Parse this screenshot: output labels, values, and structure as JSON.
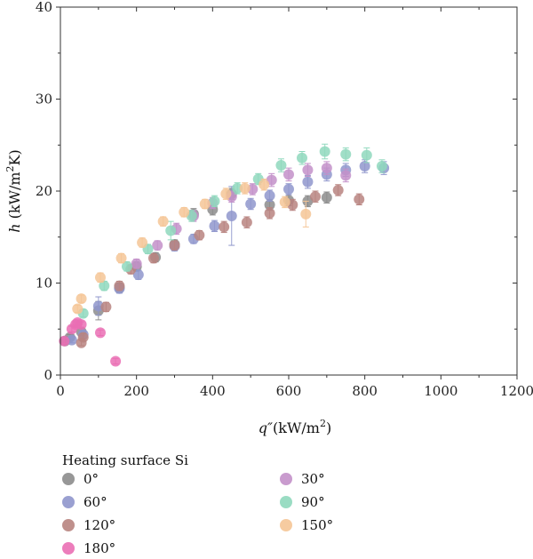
{
  "chart_data": {
    "type": "scatter",
    "title": "",
    "xlabel_prefix": "q″",
    "xlabel_unit": "(kW/m",
    "xlabel_sup": "2",
    "xlabel_close": ")",
    "ylabel_italic": "h",
    "ylabel_unit": " (kW/m",
    "ylabel_sup": "2",
    "ylabel_close": "K)",
    "xlim": [
      0,
      1200
    ],
    "ylim": [
      0,
      40
    ],
    "xticks": [
      0,
      200,
      400,
      600,
      800,
      1000,
      1200
    ],
    "yticks": [
      0,
      10,
      20,
      30,
      40
    ],
    "grid": false,
    "legend": {
      "title": "Heating surface Si",
      "placement": "bottom"
    },
    "series": [
      {
        "name": "0°",
        "color": "#8c8c8c",
        "points": [
          {
            "x": 12,
            "y": 3.7,
            "err": 0.3
          },
          {
            "x": 25,
            "y": 4.1,
            "err": 0.3
          },
          {
            "x": 55,
            "y": 4.7,
            "err": 0.4
          },
          {
            "x": 100,
            "y": 7.0,
            "err": 1.0
          },
          {
            "x": 155,
            "y": 9.5,
            "err": 0.5
          },
          {
            "x": 200,
            "y": 11.8,
            "err": 0.5
          },
          {
            "x": 250,
            "y": 12.8,
            "err": 0.5
          },
          {
            "x": 300,
            "y": 14.2,
            "err": 0.5
          },
          {
            "x": 350,
            "y": 17.5,
            "err": 0.6
          },
          {
            "x": 400,
            "y": 18.0,
            "err": 0.6
          },
          {
            "x": 450,
            "y": 19.7,
            "err": 0.6
          },
          {
            "x": 550,
            "y": 18.5,
            "err": 0.6
          },
          {
            "x": 600,
            "y": 19.0,
            "err": 0.6
          },
          {
            "x": 650,
            "y": 18.9,
            "err": 0.6
          },
          {
            "x": 700,
            "y": 19.3,
            "err": 0.6
          }
        ]
      },
      {
        "name": "60°",
        "color": "#8f96cc",
        "points": [
          {
            "x": 30,
            "y": 3.8,
            "err": 0.3
          },
          {
            "x": 60,
            "y": 4.4,
            "err": 0.4
          },
          {
            "x": 100,
            "y": 7.5,
            "err": 1.0
          },
          {
            "x": 155,
            "y": 9.4,
            "err": 0.5
          },
          {
            "x": 205,
            "y": 10.9,
            "err": 0.5
          },
          {
            "x": 300,
            "y": 14.0,
            "err": 0.5
          },
          {
            "x": 350,
            "y": 14.8,
            "err": 0.5
          },
          {
            "x": 405,
            "y": 16.2,
            "err": 0.6
          },
          {
            "x": 450,
            "y": 17.3,
            "err": 3.2
          },
          {
            "x": 500,
            "y": 18.6,
            "err": 0.6
          },
          {
            "x": 550,
            "y": 19.5,
            "err": 0.6
          },
          {
            "x": 600,
            "y": 20.2,
            "err": 0.6
          },
          {
            "x": 650,
            "y": 21.0,
            "err": 0.7
          },
          {
            "x": 700,
            "y": 21.8,
            "err": 0.7
          },
          {
            "x": 750,
            "y": 22.3,
            "err": 0.7
          },
          {
            "x": 800,
            "y": 22.7,
            "err": 0.7
          },
          {
            "x": 850,
            "y": 22.5,
            "err": 0.7
          }
        ]
      },
      {
        "name": "120°",
        "color": "#b88480",
        "points": [
          {
            "x": 55,
            "y": 3.5,
            "err": 0.3
          },
          {
            "x": 60,
            "y": 4.1,
            "err": 0.4
          },
          {
            "x": 120,
            "y": 7.4,
            "err": 0.5
          },
          {
            "x": 155,
            "y": 9.7,
            "err": 0.5
          },
          {
            "x": 185,
            "y": 11.5,
            "err": 0.5
          },
          {
            "x": 245,
            "y": 12.7,
            "err": 0.5
          },
          {
            "x": 300,
            "y": 14.1,
            "err": 0.5
          },
          {
            "x": 365,
            "y": 15.2,
            "err": 0.5
          },
          {
            "x": 430,
            "y": 16.1,
            "err": 0.6
          },
          {
            "x": 490,
            "y": 16.6,
            "err": 0.6
          },
          {
            "x": 550,
            "y": 17.6,
            "err": 0.6
          },
          {
            "x": 610,
            "y": 18.5,
            "err": 0.6
          },
          {
            "x": 670,
            "y": 19.4,
            "err": 0.6
          },
          {
            "x": 730,
            "y": 20.1,
            "err": 0.6
          },
          {
            "x": 785,
            "y": 19.1,
            "err": 0.6
          }
        ]
      },
      {
        "name": "180°",
        "color": "#ea6fb4",
        "points": [
          {
            "x": 10,
            "y": 3.7,
            "err": 0.3
          },
          {
            "x": 30,
            "y": 5.0,
            "err": 0.3
          },
          {
            "x": 40,
            "y": 5.5,
            "err": 0.3
          },
          {
            "x": 45,
            "y": 5.7,
            "err": 0.3
          },
          {
            "x": 55,
            "y": 5.5,
            "err": 0.3
          },
          {
            "x": 105,
            "y": 4.6,
            "err": 0.3
          },
          {
            "x": 145,
            "y": 1.5,
            "err": 0.3
          }
        ]
      },
      {
        "name": "30°",
        "color": "#c390c9",
        "points": [
          {
            "x": 200,
            "y": 12.1,
            "err": 0.5
          },
          {
            "x": 255,
            "y": 14.1,
            "err": 0.5
          },
          {
            "x": 305,
            "y": 15.9,
            "err": 0.6
          },
          {
            "x": 350,
            "y": 17.3,
            "err": 0.6
          },
          {
            "x": 400,
            "y": 18.7,
            "err": 0.6
          },
          {
            "x": 450,
            "y": 19.4,
            "err": 0.6
          },
          {
            "x": 505,
            "y": 20.2,
            "err": 0.6
          },
          {
            "x": 555,
            "y": 21.2,
            "err": 0.7
          },
          {
            "x": 600,
            "y": 21.8,
            "err": 0.7
          },
          {
            "x": 650,
            "y": 22.3,
            "err": 0.7
          },
          {
            "x": 700,
            "y": 22.5,
            "err": 0.7
          },
          {
            "x": 750,
            "y": 21.7,
            "err": 0.7
          }
        ]
      },
      {
        "name": "90°",
        "color": "#8fd8bd",
        "points": [
          {
            "x": 60,
            "y": 6.7,
            "err": 0.4
          },
          {
            "x": 115,
            "y": 9.7,
            "err": 0.5
          },
          {
            "x": 175,
            "y": 11.8,
            "err": 0.5
          },
          {
            "x": 230,
            "y": 13.7,
            "err": 0.5
          },
          {
            "x": 290,
            "y": 15.7,
            "err": 1.0
          },
          {
            "x": 345,
            "y": 17.3,
            "err": 0.6
          },
          {
            "x": 405,
            "y": 18.9,
            "err": 0.6
          },
          {
            "x": 465,
            "y": 20.3,
            "err": 0.6
          },
          {
            "x": 520,
            "y": 21.3,
            "err": 0.6
          },
          {
            "x": 580,
            "y": 22.8,
            "err": 0.7
          },
          {
            "x": 635,
            "y": 23.6,
            "err": 0.7
          },
          {
            "x": 695,
            "y": 24.3,
            "err": 0.8
          },
          {
            "x": 750,
            "y": 24.0,
            "err": 0.7
          },
          {
            "x": 805,
            "y": 23.9,
            "err": 0.8
          },
          {
            "x": 845,
            "y": 22.7,
            "err": 0.7
          }
        ]
      },
      {
        "name": "150°",
        "color": "#f5c596",
        "points": [
          {
            "x": 45,
            "y": 7.2,
            "err": 0.4
          },
          {
            "x": 55,
            "y": 8.3,
            "err": 0.4
          },
          {
            "x": 105,
            "y": 10.6,
            "err": 0.5
          },
          {
            "x": 160,
            "y": 12.7,
            "err": 0.5
          },
          {
            "x": 215,
            "y": 14.4,
            "err": 0.5
          },
          {
            "x": 270,
            "y": 16.7,
            "err": 0.5
          },
          {
            "x": 325,
            "y": 17.7,
            "err": 0.5
          },
          {
            "x": 380,
            "y": 18.6,
            "err": 0.5
          },
          {
            "x": 435,
            "y": 19.7,
            "err": 0.6
          },
          {
            "x": 485,
            "y": 20.3,
            "err": 0.6
          },
          {
            "x": 535,
            "y": 20.7,
            "err": 0.6
          },
          {
            "x": 590,
            "y": 18.8,
            "err": 0.6
          },
          {
            "x": 645,
            "y": 17.5,
            "err": 1.4
          }
        ]
      }
    ]
  }
}
